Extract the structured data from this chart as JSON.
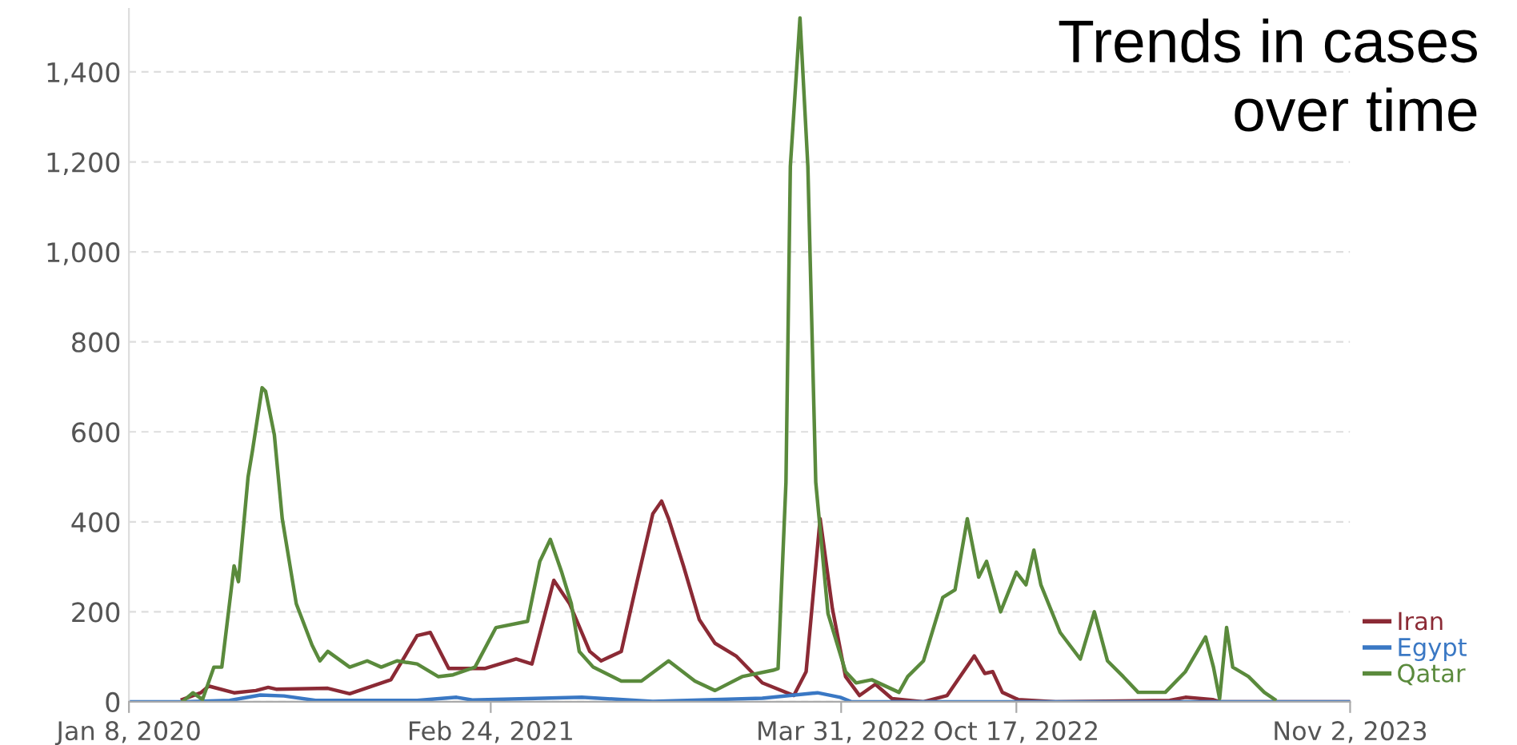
{
  "chart_data": {
    "type": "line",
    "title": "Trends in cases over time",
    "xlim": [
      "2020-01-08",
      "2023-11-02"
    ],
    "xticks": [
      {
        "value": "2020-01-08",
        "label": "Jan 8, 2020"
      },
      {
        "value": "2021-02-24",
        "label": "Feb 24, 2021"
      },
      {
        "value": "2022-03-31",
        "label": "Mar 31, 2022"
      },
      {
        "value": "2022-10-17",
        "label": "Oct 17, 2022"
      },
      {
        "value": "2023-11-02",
        "label": "Nov 2, 2023"
      }
    ],
    "ylim": [
      0,
      1540
    ],
    "yticks": [
      0,
      {
        "value": 200,
        "label": "200"
      },
      {
        "value": 400,
        "label": "400"
      },
      {
        "value": 600,
        "label": "600"
      },
      {
        "value": 800,
        "label": "800"
      },
      {
        "value": 1000,
        "label": "1,000"
      },
      {
        "value": 1200,
        "label": "1,200"
      },
      {
        "value": 1400,
        "label": "1,400"
      }
    ],
    "grid": "y",
    "legend": "right",
    "marker": "none",
    "line_style": "solid",
    "series": [
      {
        "name": "Iran",
        "color": "#8b2a35",
        "x": [
          "2020-03-09",
          "2020-03-30",
          "2020-04-08",
          "2020-05-07",
          "2020-06-01",
          "2020-06-15",
          "2020-06-24",
          "2020-08-22",
          "2020-09-16",
          "2020-11-02",
          "2020-12-02",
          "2020-12-17",
          "2021-01-07",
          "2021-02-17",
          "2021-03-25",
          "2021-04-12",
          "2021-05-07",
          "2021-05-25",
          "2021-06-17",
          "2021-06-30",
          "2021-07-23",
          "2021-08-10",
          "2021-08-28",
          "2021-09-07",
          "2021-09-15",
          "2021-10-02",
          "2021-10-20",
          "2021-11-07",
          "2021-12-01",
          "2021-12-31",
          "2022-02-05",
          "2022-02-19",
          "2022-03-07",
          "2022-03-21",
          "2022-04-05",
          "2022-04-21",
          "2022-05-09",
          "2022-05-28",
          "2022-07-03",
          "2022-07-30",
          "2022-08-30",
          "2022-09-11",
          "2022-09-20",
          "2022-10-01",
          "2022-10-19",
          "2022-12-01",
          "2023-04-10",
          "2023-04-28",
          "2023-05-29",
          "2023-06-06",
          "2023-11-02"
        ],
        "values": [
          5,
          20,
          35,
          20,
          25,
          32,
          28,
          30,
          18,
          49,
          147,
          154,
          74,
          74,
          95,
          84,
          270,
          218,
          112,
          91,
          112,
          267,
          418,
          446,
          407,
          302,
          183,
          130,
          102,
          42,
          14,
          67,
          407,
          207,
          56,
          14,
          39,
          7,
          0,
          14,
          102,
          63,
          67,
          21,
          5,
          0,
          3,
          10,
          5,
          0,
          0
        ]
      },
      {
        "name": "Egypt",
        "color": "#3a78c4",
        "x": [
          "2020-01-08",
          "2020-03-09",
          "2020-05-02",
          "2020-06-06",
          "2020-07-03",
          "2020-08-08",
          "2020-12-02",
          "2021-01-16",
          "2021-02-03",
          "2021-06-08",
          "2021-08-28",
          "2021-12-31",
          "2022-03-04",
          "2022-03-30",
          "2022-04-12",
          "2023-11-02"
        ],
        "values": [
          0,
          0,
          3,
          15,
          13,
          3,
          3,
          10,
          4,
          10,
          1,
          8,
          20,
          10,
          0,
          0
        ]
      },
      {
        "name": "Qatar",
        "color": "#5a8a3c",
        "x": [
          "2020-03-09",
          "2020-03-21",
          "2020-04-01",
          "2020-04-14",
          "2020-04-23",
          "2020-05-07",
          "2020-05-12",
          "2020-05-23",
          "2020-05-28",
          "2020-06-08",
          "2020-06-12",
          "2020-06-22",
          "2020-07-01",
          "2020-07-17",
          "2020-08-04",
          "2020-08-13",
          "2020-08-22",
          "2020-09-16",
          "2020-10-06",
          "2020-10-22",
          "2020-11-09",
          "2020-12-02",
          "2020-12-26",
          "2021-01-12",
          "2021-02-06",
          "2021-03-02",
          "2021-04-07",
          "2021-04-21",
          "2021-05-03",
          "2021-05-16",
          "2021-05-27",
          "2021-06-05",
          "2021-06-21",
          "2021-07-23",
          "2021-08-15",
          "2021-09-15",
          "2021-10-15",
          "2021-11-07",
          "2021-12-08",
          "2022-01-12",
          "2022-01-18",
          "2022-01-27",
          "2022-02-01",
          "2022-02-12",
          "2022-02-21",
          "2022-03-02",
          "2022-03-16",
          "2022-04-05",
          "2022-04-17",
          "2022-05-05",
          "2022-06-05",
          "2022-06-15",
          "2022-07-03",
          "2022-07-25",
          "2022-08-08",
          "2022-08-22",
          "2022-09-04",
          "2022-09-13",
          "2022-09-29",
          "2022-10-17",
          "2022-10-28",
          "2022-11-06",
          "2022-11-14",
          "2022-12-06",
          "2022-12-29",
          "2023-01-14",
          "2023-01-29",
          "2023-02-16",
          "2023-03-05",
          "2023-04-05",
          "2023-04-28",
          "2023-05-21",
          "2023-05-30",
          "2023-06-06",
          "2023-06-14",
          "2023-06-21",
          "2023-07-09",
          "2023-07-27",
          "2023-08-08"
        ],
        "values": [
          0,
          20,
          5,
          77,
          77,
          302,
          267,
          500,
          558,
          698,
          690,
          593,
          407,
          218,
          126,
          91,
          112,
          77,
          91,
          77,
          91,
          84,
          56,
          60,
          77,
          165,
          179,
          312,
          361,
          288,
          218,
          112,
          77,
          46,
          46,
          91,
          46,
          25,
          56,
          70,
          74,
          488,
          1190,
          1520,
          1190,
          488,
          196,
          67,
          42,
          49,
          21,
          56,
          91,
          232,
          249,
          407,
          277,
          312,
          200,
          288,
          260,
          337,
          260,
          154,
          95,
          200,
          91,
          56,
          21,
          21,
          67,
          144,
          77,
          7,
          165,
          77,
          56,
          21,
          5
        ]
      }
    ]
  }
}
